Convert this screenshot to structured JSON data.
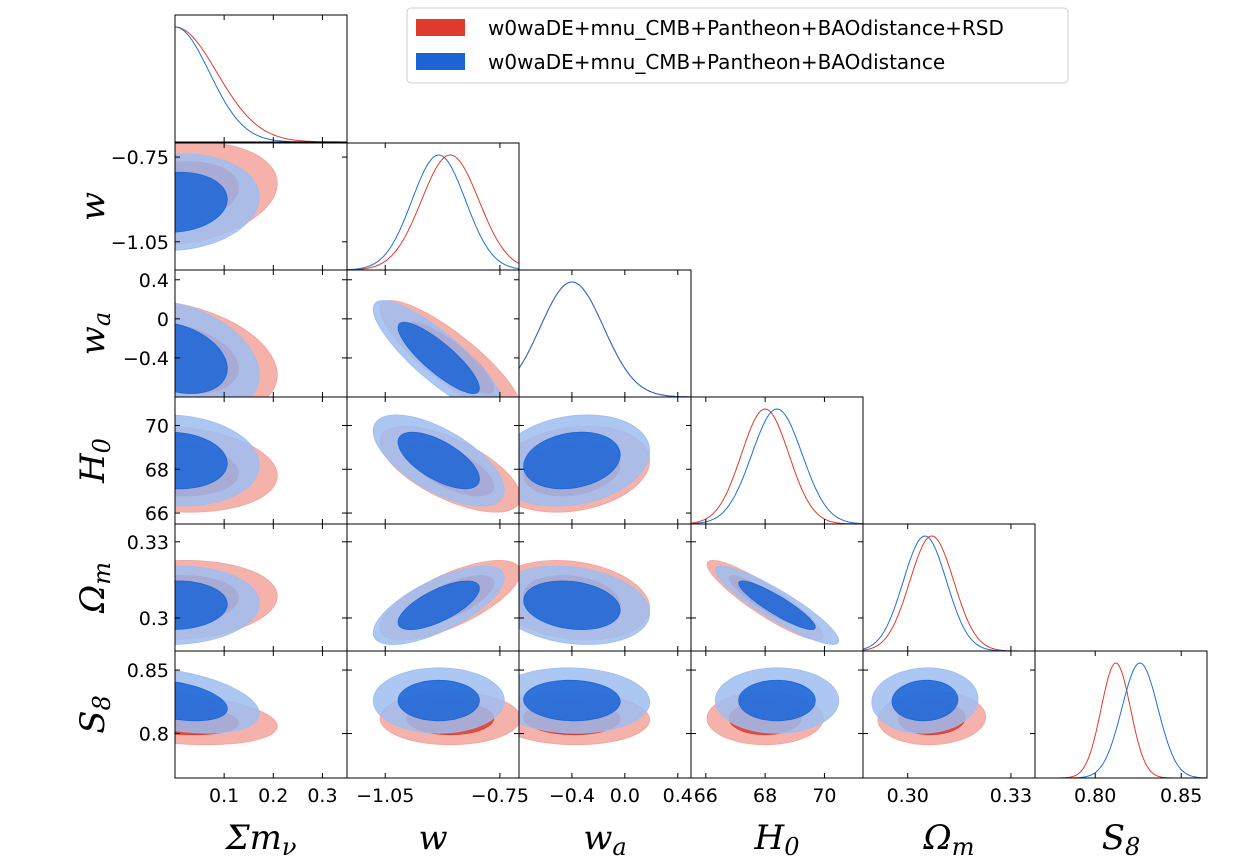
{
  "chart_data": {
    "type": "triangle-corner",
    "params": [
      {
        "id": "mnu",
        "label": "Σm",
        "label_sub": "ν",
        "range": [
          0.0,
          0.35
        ],
        "ticks": [
          0.1,
          0.2,
          0.3
        ],
        "ticklabels": [
          "0.1",
          "0.2",
          "0.3"
        ]
      },
      {
        "id": "w",
        "label": "w",
        "label_sub": "",
        "range": [
          -1.15,
          -0.7
        ],
        "ticks": [
          -1.05,
          -0.75
        ],
        "ticklabels": [
          "−1.05",
          "−0.75"
        ]
      },
      {
        "id": "wa",
        "label": "w",
        "label_sub": "a",
        "range": [
          -0.8,
          0.5
        ],
        "ticks": [
          -0.4,
          0.0,
          0.4
        ],
        "ticklabels": [
          "−0.4",
          "0.0",
          "0.4"
        ],
        "yticks": [
          0.4,
          0.0,
          -0.4
        ],
        "yticklabels": [
          "0.4",
          "0",
          "−0.4"
        ]
      },
      {
        "id": "H0",
        "label": "H",
        "label_sub": "0",
        "range": [
          65.5,
          71.3
        ],
        "ticks": [
          66,
          68,
          70
        ],
        "ticklabels": [
          "66",
          "68",
          "70"
        ]
      },
      {
        "id": "Om",
        "label": "Ω",
        "label_sub": "m",
        "range": [
          0.287,
          0.337
        ],
        "ticks": [
          0.3,
          0.33
        ],
        "ticklabels": [
          "0.30",
          "0.33"
        ],
        "yticks": [
          0.33,
          0.3
        ],
        "yticklabels": [
          "0.33",
          "0.3"
        ]
      },
      {
        "id": "S8",
        "label": "S",
        "label_sub": "8",
        "range": [
          0.765,
          0.865
        ],
        "ticks": [
          0.8,
          0.85
        ],
        "ticklabels": [
          "0.80",
          "0.85"
        ],
        "yticks": [
          0.85,
          0.8
        ],
        "yticklabels": [
          "0.85",
          "0.8"
        ]
      }
    ],
    "series": [
      {
        "name": "w0waDE+mnu_CMB+Pantheon+BAOdistance+RSD",
        "color": "#e03a2c",
        "fill_inner": "#e03a2c",
        "fill_outer": "#f2a49c",
        "mean": {
          "mnu": 0.0,
          "w": -0.88,
          "wa": -0.4,
          "H0": 68.0,
          "Om": 0.307,
          "S8": 0.812
        },
        "sigma": {
          "mnu": 0.085,
          "w": 0.075,
          "wa": 0.24,
          "H0": 0.8,
          "Om": 0.0064,
          "S8": 0.0085
        },
        "corr": {
          "mnu|w": 0.2,
          "mnu|wa": -0.3,
          "mnu|H0": -0.15,
          "mnu|Om": 0.1,
          "mnu|S8": -0.3,
          "w|wa": -0.85,
          "w|H0": -0.65,
          "w|Om": 0.7,
          "w|S8": 0.0,
          "wa|H0": 0.2,
          "wa|Om": -0.2,
          "wa|S8": -0.05,
          "H0|Om": -0.9,
          "H0|S8": 0.0,
          "Om|S8": 0.05
        }
      },
      {
        "name": "w0waDE+mnu_CMB+Pantheon+BAOdistance",
        "color": "#1f6fd6",
        "fill_inner": "#1a64d6",
        "fill_outer": "#9ebdf0",
        "mean": {
          "mnu": 0.0,
          "w": -0.91,
          "wa": -0.4,
          "H0": 68.4,
          "Om": 0.305,
          "S8": 0.826
        },
        "sigma": {
          "mnu": 0.07,
          "w": 0.07,
          "wa": 0.24,
          "H0": 0.85,
          "Om": 0.0063,
          "S8": 0.0105
        },
        "corr": {
          "mnu|w": 0.1,
          "mnu|wa": -0.3,
          "mnu|H0": -0.1,
          "mnu|Om": 0.05,
          "mnu|S8": -0.4,
          "w|wa": -0.85,
          "w|H0": -0.65,
          "w|Om": 0.7,
          "w|S8": 0.0,
          "wa|H0": 0.2,
          "wa|Om": -0.2,
          "wa|S8": -0.05,
          "H0|Om": -0.9,
          "H0|S8": 0.0,
          "Om|S8": 0.05
        }
      }
    ],
    "legend_position": "top-right"
  }
}
